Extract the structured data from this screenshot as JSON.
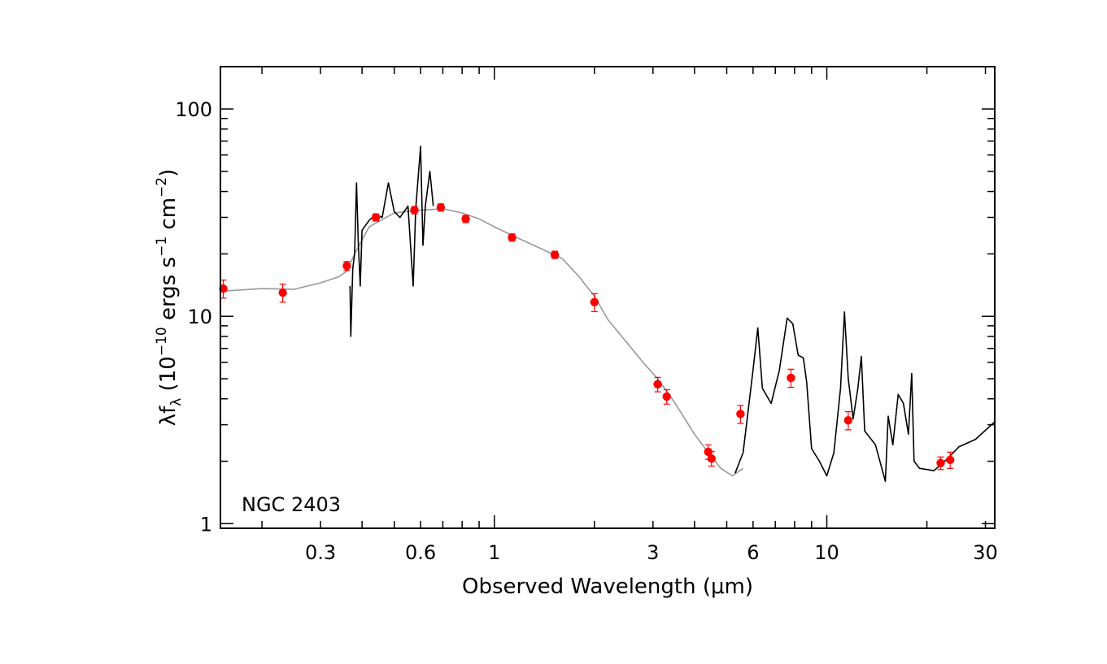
{
  "chart_data": {
    "type": "scatter",
    "title": "",
    "xlabel": "Observed Wavelength (μm)",
    "ylabel_parts": {
      "lambda": "λ",
      "f": "f",
      "sub_lambda": "λ",
      "open": " (10",
      "exp_neg10": "−10",
      "ergs_s": " ergs s",
      "exp_neg1": "−1",
      "cm": " cm",
      "exp_neg2": "−2",
      "close": ")"
    },
    "annotation": "NGC 2403",
    "x_scale": "log",
    "y_scale": "log",
    "xlim": [
      0.15,
      32
    ],
    "ylim": [
      0.95,
      160
    ],
    "x_tick_labels": [
      {
        "value": 0.3,
        "label": "0.3"
      },
      {
        "value": 0.6,
        "label": "0.6"
      },
      {
        "value": 1,
        "label": "1"
      },
      {
        "value": 3,
        "label": "3"
      },
      {
        "value": 6,
        "label": "6"
      },
      {
        "value": 10,
        "label": "10"
      },
      {
        "value": 30,
        "label": "30"
      }
    ],
    "y_tick_labels": [
      {
        "value": 1,
        "label": "1"
      },
      {
        "value": 10,
        "label": "10"
      },
      {
        "value": 100,
        "label": "100"
      }
    ],
    "grid": false,
    "colors": {
      "photometry": "#ff0000",
      "model": "#999999",
      "observed_spectrum": "#000000",
      "axes": "#000000"
    },
    "series": [
      {
        "kind": "photometry_points",
        "points": [
          {
            "x": 0.153,
            "y": 13.6,
            "yerr_frac": 0.1
          },
          {
            "x": 0.231,
            "y": 13.0,
            "yerr_frac": 0.1
          },
          {
            "x": 0.36,
            "y": 17.5,
            "yerr_frac": 0.05
          },
          {
            "x": 0.44,
            "y": 30.0,
            "yerr_frac": 0.04
          },
          {
            "x": 0.575,
            "y": 32.5,
            "yerr_frac": 0.04
          },
          {
            "x": 0.69,
            "y": 33.5,
            "yerr_frac": 0.04
          },
          {
            "x": 0.82,
            "y": 29.5,
            "yerr_frac": 0.04
          },
          {
            "x": 1.13,
            "y": 24.0,
            "yerr_frac": 0.04
          },
          {
            "x": 1.52,
            "y": 19.8,
            "yerr_frac": 0.04
          },
          {
            "x": 2.0,
            "y": 11.7,
            "yerr_frac": 0.1
          },
          {
            "x": 3.1,
            "y": 4.7,
            "yerr_frac": 0.08
          },
          {
            "x": 3.3,
            "y": 4.1,
            "yerr_frac": 0.08
          },
          {
            "x": 4.4,
            "y": 2.22,
            "yerr_frac": 0.08
          },
          {
            "x": 4.5,
            "y": 2.06,
            "yerr_frac": 0.08
          },
          {
            "x": 5.5,
            "y": 3.38,
            "yerr_frac": 0.1
          },
          {
            "x": 7.8,
            "y": 5.05,
            "yerr_frac": 0.1
          },
          {
            "x": 11.6,
            "y": 3.15,
            "yerr_frac": 0.1
          },
          {
            "x": 22.0,
            "y": 1.96,
            "yerr_frac": 0.07
          },
          {
            "x": 23.5,
            "y": 2.03,
            "yerr_frac": 0.09
          }
        ]
      },
      {
        "kind": "model_sed",
        "points": [
          [
            0.15,
            13.2
          ],
          [
            0.2,
            13.6
          ],
          [
            0.25,
            13.5
          ],
          [
            0.3,
            14.5
          ],
          [
            0.34,
            15.5
          ],
          [
            0.36,
            16.5
          ],
          [
            0.38,
            20.0
          ],
          [
            0.42,
            27.0
          ],
          [
            0.5,
            31.5
          ],
          [
            0.6,
            32.5
          ],
          [
            0.7,
            33.0
          ],
          [
            0.8,
            31.5
          ],
          [
            0.9,
            29.5
          ],
          [
            1.0,
            27.0
          ],
          [
            1.2,
            23.5
          ],
          [
            1.4,
            21.0
          ],
          [
            1.6,
            19.0
          ],
          [
            1.8,
            15.5
          ],
          [
            2.0,
            12.5
          ],
          [
            2.2,
            9.6
          ],
          [
            2.5,
            7.5
          ],
          [
            2.8,
            6.0
          ],
          [
            3.1,
            5.0
          ],
          [
            3.5,
            3.8
          ],
          [
            4.0,
            2.7
          ],
          [
            4.4,
            2.2
          ],
          [
            4.8,
            1.85
          ],
          [
            5.2,
            1.7
          ],
          [
            5.6,
            1.85
          ]
        ]
      },
      {
        "kind": "observed_spectrum_optical",
        "points": [
          [
            0.368,
            14.0
          ],
          [
            0.37,
            8.0
          ],
          [
            0.375,
            17.0
          ],
          [
            0.38,
            20.0
          ],
          [
            0.385,
            44.0
          ],
          [
            0.39,
            22.0
          ],
          [
            0.395,
            14.0
          ],
          [
            0.4,
            26.0
          ],
          [
            0.42,
            29.0
          ],
          [
            0.44,
            31.0
          ],
          [
            0.46,
            30.0
          ],
          [
            0.48,
            44.0
          ],
          [
            0.5,
            32.0
          ],
          [
            0.52,
            30.0
          ],
          [
            0.55,
            34.0
          ],
          [
            0.57,
            14.0
          ],
          [
            0.58,
            33.0
          ],
          [
            0.6,
            66.0
          ],
          [
            0.61,
            22.0
          ],
          [
            0.62,
            34.0
          ],
          [
            0.64,
            50.0
          ],
          [
            0.655,
            34.0
          ]
        ]
      },
      {
        "kind": "observed_spectrum_ir",
        "points": [
          [
            5.3,
            1.75
          ],
          [
            5.6,
            2.2
          ],
          [
            5.8,
            3.5
          ],
          [
            6.0,
            5.5
          ],
          [
            6.2,
            8.8
          ],
          [
            6.4,
            4.5
          ],
          [
            6.8,
            3.8
          ],
          [
            7.2,
            5.5
          ],
          [
            7.6,
            9.8
          ],
          [
            7.9,
            9.2
          ],
          [
            8.2,
            6.5
          ],
          [
            8.5,
            6.3
          ],
          [
            8.7,
            4.8
          ],
          [
            9.0,
            2.3
          ],
          [
            9.5,
            2.0
          ],
          [
            10.0,
            1.7
          ],
          [
            10.5,
            2.2
          ],
          [
            11.0,
            4.5
          ],
          [
            11.3,
            10.5
          ],
          [
            11.6,
            5.0
          ],
          [
            12.0,
            3.2
          ],
          [
            12.4,
            4.5
          ],
          [
            12.7,
            6.4
          ],
          [
            13.0,
            2.8
          ],
          [
            14.0,
            2.4
          ],
          [
            15.0,
            1.6
          ],
          [
            15.3,
            3.3
          ],
          [
            15.8,
            2.4
          ],
          [
            16.4,
            4.2
          ],
          [
            17.0,
            3.8
          ],
          [
            17.6,
            2.7
          ],
          [
            18.0,
            5.3
          ],
          [
            18.3,
            2.0
          ],
          [
            19.0,
            1.85
          ],
          [
            21.0,
            1.8
          ],
          [
            23.0,
            2.05
          ],
          [
            25.0,
            2.35
          ],
          [
            28.0,
            2.55
          ],
          [
            32.0,
            3.1
          ]
        ]
      }
    ]
  }
}
